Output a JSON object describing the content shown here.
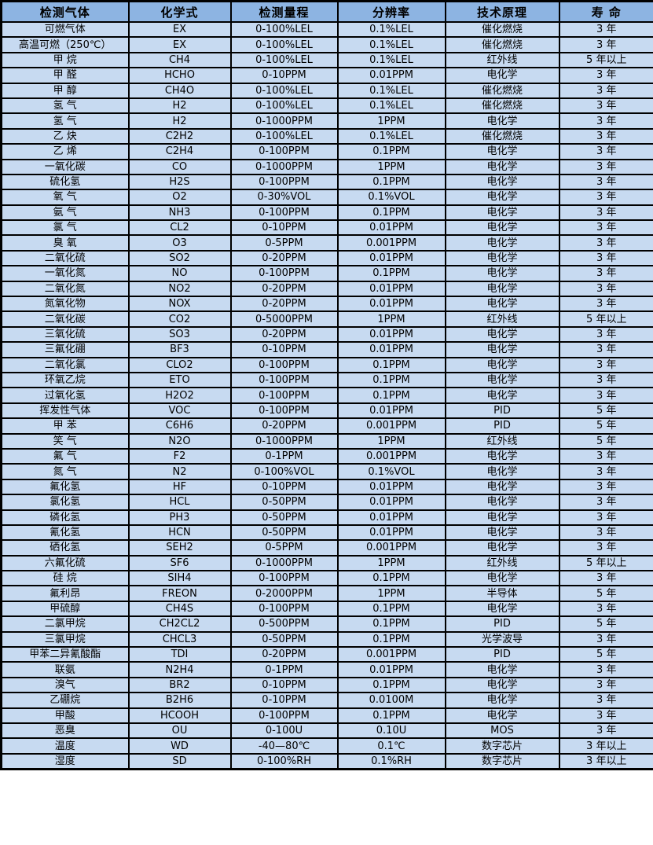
{
  "table": {
    "columns": [
      "检测气体",
      "化学式",
      "检测量程",
      "分辨率",
      "技术原理",
      "寿 命"
    ],
    "rows": [
      [
        "可燃气体",
        "EX",
        "0-100%LEL",
        "0.1%LEL",
        "催化燃烧",
        "3 年"
      ],
      [
        "高温可燃（250℃）",
        "EX",
        "0-100%LEL",
        "0.1%LEL",
        "催化燃烧",
        "3 年"
      ],
      [
        "甲 烷",
        "CH4",
        "0-100%LEL",
        "0.1%LEL",
        "红外线",
        "5 年以上"
      ],
      [
        "甲 醛",
        "HCHO",
        "0-10PPM",
        "0.01PPM",
        "电化学",
        "3 年"
      ],
      [
        "甲 醇",
        "CH4O",
        "0-100%LEL",
        "0.1%LEL",
        "催化燃烧",
        "3 年"
      ],
      [
        "氢 气",
        "H2",
        "0-100%LEL",
        "0.1%LEL",
        "催化燃烧",
        "3 年"
      ],
      [
        "氢 气",
        "H2",
        "0-1000PPM",
        "1PPM",
        "电化学",
        "3 年"
      ],
      [
        "乙 炔",
        "C2H2",
        "0-100%LEL",
        "0.1%LEL",
        "催化燃烧",
        "3 年"
      ],
      [
        "乙 烯",
        "C2H4",
        "0-100PPM",
        "0.1PPM",
        "电化学",
        "3 年"
      ],
      [
        "一氧化碳",
        "CO",
        "0-1000PPM",
        "1PPM",
        "电化学",
        "3 年"
      ],
      [
        "硫化氢",
        "H2S",
        "0-100PPM",
        "0.1PPM",
        "电化学",
        "3 年"
      ],
      [
        "氧 气",
        "O2",
        "0-30%VOL",
        "0.1%VOL",
        "电化学",
        "3 年"
      ],
      [
        "氨 气",
        "NH3",
        "0-100PPM",
        "0.1PPM",
        "电化学",
        "3 年"
      ],
      [
        "氯 气",
        "CL2",
        "0-10PPM",
        "0.01PPM",
        "电化学",
        "3 年"
      ],
      [
        "臭 氧",
        "O3",
        "0-5PPM",
        "0.001PPM",
        "电化学",
        "3 年"
      ],
      [
        "二氧化硫",
        "SO2",
        "0-20PPM",
        "0.01PPM",
        "电化学",
        "3 年"
      ],
      [
        "一氧化氮",
        "NO",
        "0-100PPM",
        "0.1PPM",
        "电化学",
        "3 年"
      ],
      [
        "二氧化氮",
        "NO2",
        "0-20PPM",
        "0.01PPM",
        "电化学",
        "3 年"
      ],
      [
        "氮氧化物",
        "NOX",
        "0-20PPM",
        "0.01PPM",
        "电化学",
        "3 年"
      ],
      [
        "二氧化碳",
        "CO2",
        "0-5000PPM",
        "1PPM",
        "红外线",
        "5 年以上"
      ],
      [
        "三氧化硫",
        "SO3",
        "0-20PPM",
        "0.01PPM",
        "电化学",
        "3 年"
      ],
      [
        "三氟化硼",
        "BF3",
        "0-10PPM",
        "0.01PPM",
        "电化学",
        "3 年"
      ],
      [
        "二氧化氯",
        "CLO2",
        "0-100PPM",
        "0.1PPM",
        "电化学",
        "3 年"
      ],
      [
        "环氧乙烷",
        "ETO",
        "0-100PPM",
        "0.1PPM",
        "电化学",
        "3 年"
      ],
      [
        "过氧化氢",
        "H2O2",
        "0-100PPM",
        "0.1PPM",
        "电化学",
        "3 年"
      ],
      [
        "挥发性气体",
        "VOC",
        "0-100PPM",
        "0.01PPM",
        "PID",
        "5 年"
      ],
      [
        "甲 苯",
        "C6H6",
        "0-20PPM",
        "0.001PPM",
        "PID",
        "5 年"
      ],
      [
        "笑 气",
        "N2O",
        "0-1000PPM",
        "1PPM",
        "红外线",
        "5 年"
      ],
      [
        "氟 气",
        "F2",
        "0-1PPM",
        "0.001PPM",
        "电化学",
        "3 年"
      ],
      [
        "氮 气",
        "N2",
        "0-100%VOL",
        "0.1%VOL",
        "电化学",
        "3 年"
      ],
      [
        "氟化氢",
        "HF",
        "0-10PPM",
        "0.01PPM",
        "电化学",
        "3 年"
      ],
      [
        "氯化氢",
        "HCL",
        "0-50PPM",
        "0.01PPM",
        "电化学",
        "3 年"
      ],
      [
        "磷化氢",
        "PH3",
        "0-50PPM",
        "0.01PPM",
        "电化学",
        "3 年"
      ],
      [
        "氰化氢",
        "HCN",
        "0-50PPM",
        "0.01PPM",
        "电化学",
        "3 年"
      ],
      [
        "硒化氢",
        "SEH2",
        "0-5PPM",
        "0.001PPM",
        "电化学",
        "3 年"
      ],
      [
        "六氟化硫",
        "SF6",
        "0-1000PPM",
        "1PPM",
        "红外线",
        "5 年以上"
      ],
      [
        "硅 烷",
        "SIH4",
        "0-100PPM",
        "0.1PPM",
        "电化学",
        "3 年"
      ],
      [
        "氟利昂",
        "FREON",
        "0-2000PPM",
        "1PPM",
        "半导体",
        "5 年"
      ],
      [
        "甲硫醇",
        "CH4S",
        "0-100PPM",
        "0.1PPM",
        "电化学",
        "3 年"
      ],
      [
        "二氯甲烷",
        "CH2CL2",
        "0-500PPM",
        "0.1PPM",
        "PID",
        "5 年"
      ],
      [
        "三氯甲烷",
        "CHCL3",
        "0-50PPM",
        "0.1PPM",
        "光学波导",
        "3 年"
      ],
      [
        "甲苯二异氰酸酯",
        "TDI",
        "0-20PPM",
        "0.001PPM",
        "PID",
        "5 年"
      ],
      [
        "联氨",
        "N2H4",
        "0-1PPM",
        "0.01PPM",
        "电化学",
        "3 年"
      ],
      [
        "溴气",
        "BR2",
        "0-10PPM",
        "0.1PPM",
        "电化学",
        "3 年"
      ],
      [
        "乙硼烷",
        "B2H6",
        "0-10PPM",
        "0.0100M",
        "电化学",
        "3 年"
      ],
      [
        "甲酸",
        "HCOOH",
        "0-100PPM",
        "0.1PPM",
        "电化学",
        "3 年"
      ],
      [
        "恶臭",
        "OU",
        "0-100U",
        "0.10U",
        "MOS",
        "3 年"
      ],
      [
        "温度",
        "WD",
        "-40—80℃",
        "0.1℃",
        "数字芯片",
        "3 年以上"
      ],
      [
        "湿度",
        "SD",
        "0-100%RH",
        "0.1%RH",
        "数字芯片",
        "3 年以上"
      ]
    ]
  },
  "colors": {
    "header_bg": "#8DB4E2",
    "row_bg": "#C7DAF1",
    "border": "#000000",
    "text": "#000000"
  }
}
